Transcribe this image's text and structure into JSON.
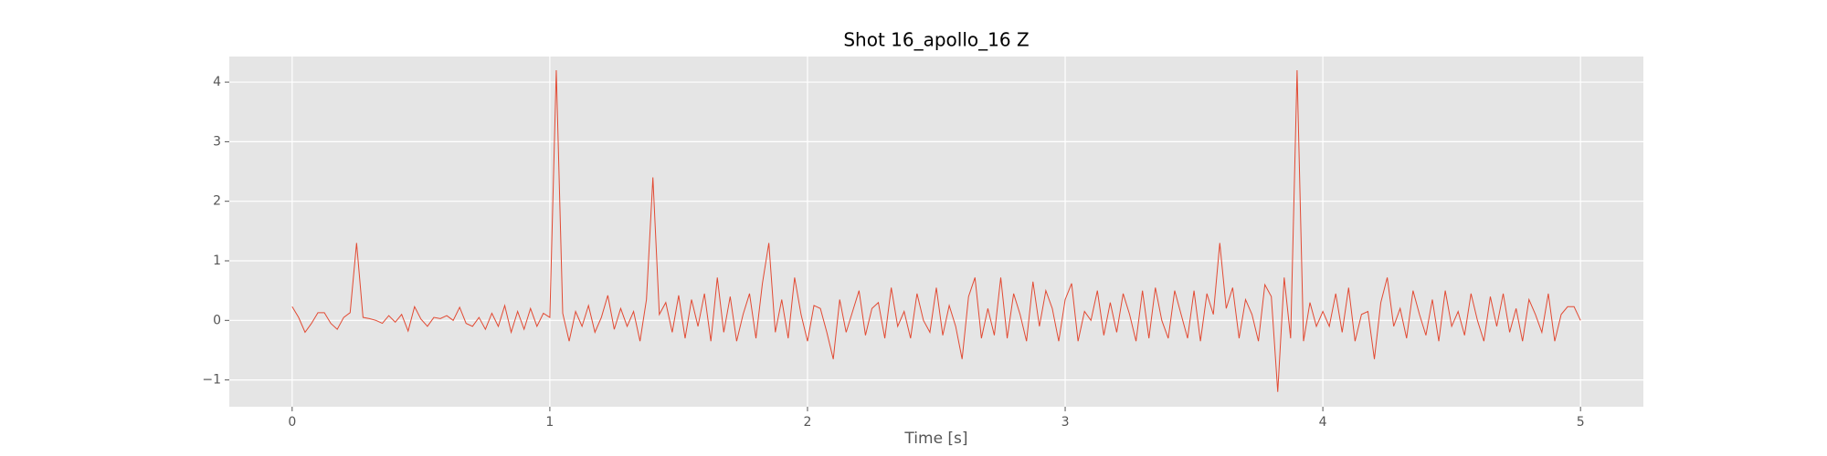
{
  "chart_data": {
    "type": "line",
    "title": "Shot 16_apollo_16 Z",
    "xlabel": "Time [s]",
    "grid": true,
    "color": "#e24a33",
    "xlim": [
      -0.244,
      5.244
    ],
    "ylim": [
      -1.45,
      4.43
    ],
    "xticks": [
      0,
      1,
      2,
      3,
      4,
      5
    ],
    "yticks": [
      {
        "value": -1,
        "label": "−1"
      },
      0,
      1,
      2,
      3,
      4
    ],
    "x": [
      0,
      0.025,
      0.05,
      0.075,
      0.1,
      0.125,
      0.15,
      0.175,
      0.2,
      0.225,
      0.25,
      0.275,
      0.3,
      0.325,
      0.35,
      0.375,
      0.4,
      0.425,
      0.45,
      0.475,
      0.5,
      0.525,
      0.55,
      0.575,
      0.6,
      0.625,
      0.65,
      0.675,
      0.7,
      0.725,
      0.75,
      0.775,
      0.8,
      0.825,
      0.85,
      0.875,
      0.9,
      0.925,
      0.95,
      0.975,
      1,
      1.025,
      1.05,
      1.075,
      1.1,
      1.125,
      1.15,
      1.175,
      1.2,
      1.225,
      1.25,
      1.275,
      1.3,
      1.325,
      1.35,
      1.375,
      1.4,
      1.425,
      1.45,
      1.475,
      1.5,
      1.525,
      1.55,
      1.575,
      1.6,
      1.625,
      1.65,
      1.675,
      1.7,
      1.725,
      1.75,
      1.775,
      1.8,
      1.825,
      1.85,
      1.875,
      1.9,
      1.925,
      1.95,
      1.975,
      2,
      2.025,
      2.05,
      2.075,
      2.1,
      2.125,
      2.15,
      2.175,
      2.2,
      2.225,
      2.25,
      2.275,
      2.3,
      2.325,
      2.35,
      2.375,
      2.4,
      2.425,
      2.45,
      2.475,
      2.5,
      2.525,
      2.55,
      2.575,
      2.6,
      2.625,
      2.65,
      2.675,
      2.7,
      2.725,
      2.75,
      2.775,
      2.8,
      2.825,
      2.85,
      2.875,
      2.9,
      2.925,
      2.95,
      2.975,
      3,
      3.025,
      3.05,
      3.075,
      3.1,
      3.125,
      3.15,
      3.175,
      3.2,
      3.225,
      3.25,
      3.275,
      3.3,
      3.325,
      3.35,
      3.375,
      3.4,
      3.425,
      3.45,
      3.475,
      3.5,
      3.525,
      3.55,
      3.575,
      3.6,
      3.625,
      3.65,
      3.675,
      3.7,
      3.725,
      3.75,
      3.775,
      3.8,
      3.825,
      3.85,
      3.875,
      3.9,
      3.925,
      3.95,
      3.975,
      4,
      4.025,
      4.05,
      4.075,
      4.1,
      4.125,
      4.15,
      4.175,
      4.2,
      4.225,
      4.25,
      4.275,
      4.3,
      4.325,
      4.35,
      4.375,
      4.4,
      4.425,
      4.45,
      4.475,
      4.5,
      4.525,
      4.55,
      4.575,
      4.6,
      4.625,
      4.65,
      4.675,
      4.7,
      4.725,
      4.75,
      4.775,
      4.8,
      4.825,
      4.85,
      4.875,
      4.9,
      4.925,
      4.95,
      4.975,
      5
    ],
    "values": [
      0.23,
      0.05,
      -0.2,
      -0.05,
      0.13,
      0.13,
      -0.05,
      -0.15,
      0.05,
      0.13,
      1.3,
      0.05,
      0.03,
      0.0,
      -0.05,
      0.08,
      -0.03,
      0.1,
      -0.18,
      0.23,
      0.02,
      -0.1,
      0.05,
      0.03,
      0.08,
      0.0,
      0.22,
      -0.05,
      -0.1,
      0.05,
      -0.15,
      0.12,
      -0.1,
      0.25,
      -0.2,
      0.15,
      -0.15,
      0.2,
      -0.1,
      0.12,
      0.05,
      4.2,
      0.12,
      -0.35,
      0.15,
      -0.1,
      0.25,
      -0.2,
      0.05,
      0.42,
      -0.15,
      0.2,
      -0.1,
      0.15,
      -0.35,
      0.35,
      2.4,
      0.1,
      0.3,
      -0.2,
      0.42,
      -0.3,
      0.35,
      -0.1,
      0.45,
      -0.35,
      0.72,
      -0.2,
      0.4,
      -0.35,
      0.1,
      0.45,
      -0.3,
      0.62,
      1.3,
      -0.2,
      0.35,
      -0.3,
      0.72,
      0.1,
      -0.35,
      0.25,
      0.2,
      -0.2,
      -0.65,
      0.35,
      -0.2,
      0.15,
      0.5,
      -0.25,
      0.2,
      0.3,
      -0.3,
      0.55,
      -0.1,
      0.15,
      -0.3,
      0.45,
      0.0,
      -0.2,
      0.55,
      -0.25,
      0.25,
      -0.1,
      -0.65,
      0.4,
      0.72,
      -0.3,
      0.2,
      -0.25,
      0.72,
      -0.3,
      0.45,
      0.1,
      -0.35,
      0.65,
      -0.1,
      0.5,
      0.2,
      -0.35,
      0.35,
      0.62,
      -0.35,
      0.15,
      0.0,
      0.5,
      -0.25,
      0.3,
      -0.2,
      0.45,
      0.1,
      -0.35,
      0.5,
      -0.3,
      0.55,
      0.0,
      -0.3,
      0.5,
      0.1,
      -0.3,
      0.5,
      -0.35,
      0.45,
      0.1,
      1.3,
      0.2,
      0.55,
      -0.3,
      0.35,
      0.1,
      -0.35,
      0.6,
      0.4,
      -1.2,
      0.72,
      -0.3,
      4.2,
      -0.35,
      0.3,
      -0.1,
      0.15,
      -0.1,
      0.45,
      -0.2,
      0.55,
      -0.35,
      0.1,
      0.15,
      -0.65,
      0.3,
      0.72,
      -0.1,
      0.2,
      -0.3,
      0.5,
      0.1,
      -0.25,
      0.35,
      -0.35,
      0.5,
      -0.1,
      0.15,
      -0.25,
      0.45,
      0.0,
      -0.35,
      0.4,
      -0.1,
      0.45,
      -0.2,
      0.2,
      -0.35,
      0.35,
      0.1,
      -0.2,
      0.45,
      -0.35,
      0.1,
      0.23,
      0.23,
      0.0
    ]
  }
}
